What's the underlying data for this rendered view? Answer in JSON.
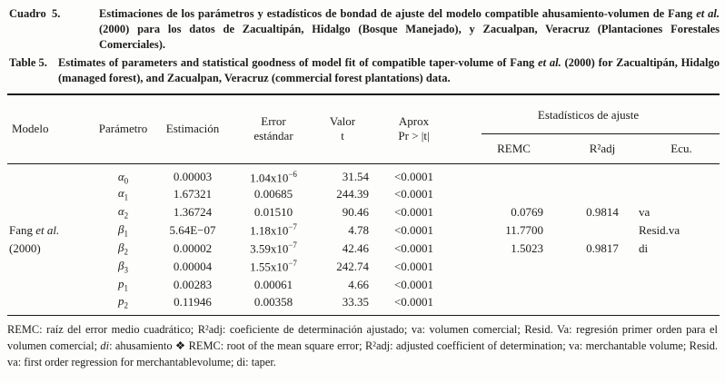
{
  "captions": {
    "es": {
      "label": "Cuadro  5.",
      "segments": [
        {
          "text": "Estimaciones de los parámetros y estadísticos de bondad de ajuste del modelo compatible ahusamiento-volumen de Fang "
        },
        {
          "text": "et al.",
          "style": "italic"
        },
        {
          "text": " (2000) para los datos de Zacualtipán, Hidalgo (Bosque Manejado), y Zacualpan, Veracruz (Plantaciones Forestales Comerciales)."
        }
      ]
    },
    "en": {
      "label": "Table 5.",
      "segments": [
        {
          "text": "Estimates of parameters and statistical goodness of model fit of compatible taper-volume of Fang "
        },
        {
          "text": "et al.",
          "style": "italic"
        },
        {
          "text": " (2000) for Zacualtipán, Hidalgo (managed forest), and Zacualpan, Veracruz (commercial forest plantations) data."
        }
      ]
    }
  },
  "table": {
    "header": {
      "modelo": "Modelo",
      "parametro": "Parámetro",
      "estimacion": "Estimación",
      "error_line1": "Error",
      "error_line2": "estándar",
      "valor_line1": "Valor",
      "valor_line2": "t",
      "aprox_line1": "Aprox",
      "aprox_line2": "Pr > |t|",
      "spanner": "Estadísticos de ajuste",
      "remc": "REMC",
      "r2adj": "R²adj",
      "ecu": "Ecu."
    },
    "model": {
      "line1_prefix": "Fang ",
      "line1_italic": "et al.",
      "line2": "(2000)"
    },
    "rows": [
      {
        "param_base": "α",
        "param_sub": "0",
        "estimate": "0.00003",
        "std_error": "1.04x10^−6",
        "t_value": "31.54",
        "pr_t": "<0.0001",
        "remc": "",
        "r2adj": "",
        "ecu": ""
      },
      {
        "param_base": "α",
        "param_sub": "1",
        "estimate": "1.67321",
        "std_error": "0.00685",
        "t_value": "244.39",
        "pr_t": "<0.0001",
        "remc": "",
        "r2adj": "",
        "ecu": ""
      },
      {
        "param_base": "α",
        "param_sub": "2",
        "estimate": "1.36724",
        "std_error": "0.01510",
        "t_value": "90.46",
        "pr_t": "<0.0001",
        "remc": "0.0769",
        "r2adj": "0.9814",
        "ecu": "va"
      },
      {
        "param_base": "β",
        "param_sub": "1",
        "estimate": "5.64E−07",
        "std_error": "1.18x10^−7",
        "t_value": "4.78",
        "pr_t": "<0.0001",
        "remc": "11.7700",
        "r2adj": "",
        "ecu": "Resid.va",
        "model_line": 1
      },
      {
        "param_base": "β",
        "param_sub": "2",
        "estimate": "0.00002",
        "std_error": "3.59x10^−7",
        "t_value": "42.46",
        "pr_t": "<0.0001",
        "remc": "1.5023",
        "r2adj": "0.9817",
        "ecu": "di",
        "model_line": 2
      },
      {
        "param_base": "β",
        "param_sub": "3",
        "estimate": "0.00004",
        "std_error": "1.55x10^−7",
        "t_value": "242.74",
        "pr_t": "<0.0001",
        "remc": "",
        "r2adj": "",
        "ecu": ""
      },
      {
        "param_base": "p",
        "param_sub": "1",
        "estimate": "0.00283",
        "std_error": "0.00061",
        "t_value": "4.66",
        "pr_t": "<0.0001",
        "remc": "",
        "r2adj": "",
        "ecu": ""
      },
      {
        "param_base": "p",
        "param_sub": "2",
        "estimate": "0.11946",
        "std_error": "0.00358",
        "t_value": "33.35",
        "pr_t": "<0.0001",
        "remc": "",
        "r2adj": "",
        "ecu": ""
      }
    ]
  },
  "footnote": {
    "segments": [
      {
        "text": "REMC: raíz del error medio cuadrático; R²adj: coeficiente de determinación ajustado; va: volumen comercial; Resid. Va: regresión primer orden para el volumen comercial; "
      },
      {
        "text": "di",
        "style": "italic"
      },
      {
        "text": ": ahusamiento ❖ REMC: root of the mean square error; R²adj: adjusted coefficient of determination; va: merchantable volume; Resid. va: first order regression for merchantablevolume; di: taper."
      }
    ]
  },
  "colors": {
    "text": "#1c1c1c",
    "rule": "#1a1a1a",
    "background": "#fdfdfb"
  }
}
